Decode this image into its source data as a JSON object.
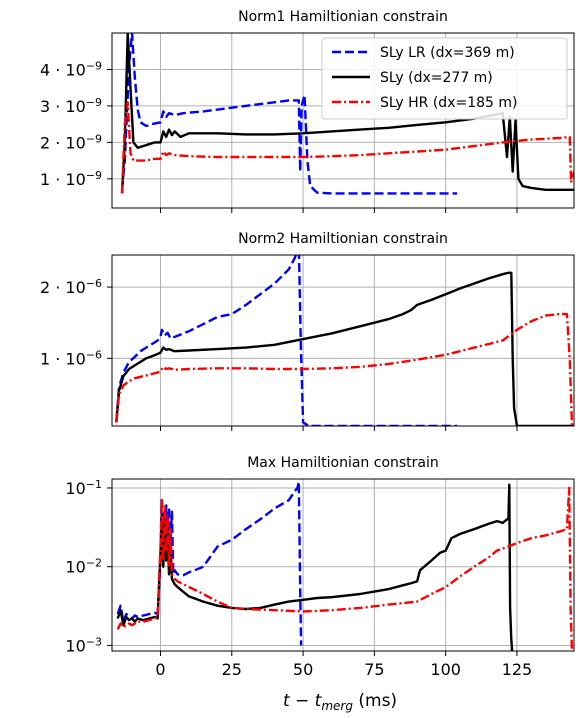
{
  "figure": {
    "xlabel": "t − t_merg (ms)"
  },
  "chart_data": [
    {
      "type": "line",
      "title": "Norm1 Hamiltionian constrain",
      "xlim": [
        -17,
        145
      ],
      "ylim": [
        2e-10,
        5e-09
      ],
      "yscale": "linear",
      "grid": true,
      "legend_position": "top-right",
      "y_ticks": [
        {
          "value": 1e-09,
          "label": "1 · 10",
          "exp": "−9"
        },
        {
          "value": 2e-09,
          "label": "2 · 10",
          "exp": "−9"
        },
        {
          "value": 3e-09,
          "label": "3 · 10",
          "exp": "−9"
        },
        {
          "value": 4e-09,
          "label": "4 · 10",
          "exp": "−9"
        }
      ],
      "series": [
        {
          "name": "SLy LR (dx=369 m)",
          "color": "#0000ff",
          "style": "dashed",
          "x": [
            -13.5,
            -12.5,
            -11,
            -10,
            -9,
            -8,
            -7,
            -5,
            -3,
            0,
            1,
            2,
            3,
            5,
            8,
            15,
            25,
            35,
            45,
            48.5,
            49,
            49.5,
            50.5,
            51.5,
            52.5,
            55,
            60,
            70,
            80,
            90,
            100,
            104
          ],
          "y": [
            7e-10,
            1.5e-09,
            4.1e-09,
            5e-09,
            3.8e-09,
            2.9e-09,
            2.55e-09,
            2.45e-09,
            2.5e-09,
            2.55e-09,
            2.85e-09,
            2.7e-09,
            2.8e-09,
            2.75e-09,
            2.8e-09,
            2.85e-09,
            2.95e-09,
            3.05e-09,
            3.15e-09,
            3.15e-09,
            1.2e-09,
            3e-09,
            3.3e-09,
            1.5e-09,
            8e-10,
            6.2e-10,
            6e-10,
            6e-10,
            6e-10,
            6e-10,
            6e-10,
            6e-10
          ]
        },
        {
          "name": "SLy (dx=277 m)",
          "color": "#000000",
          "style": "solid",
          "x": [
            -13.5,
            -12.5,
            -11.5,
            -10.5,
            -9.5,
            -8,
            -6,
            -4,
            -2,
            0,
            1,
            2,
            3,
            4,
            5,
            7,
            10,
            20,
            30,
            40,
            50,
            60,
            70,
            80,
            90,
            100,
            110,
            120,
            121.5,
            122.5,
            123.5,
            124.5,
            125.5,
            127,
            130,
            135,
            140,
            145
          ],
          "y": [
            6e-10,
            2e-09,
            5e-09,
            3.5e-09,
            2e-09,
            1.85e-09,
            1.9e-09,
            1.95e-09,
            2e-09,
            2e-09,
            2.3e-09,
            2.15e-09,
            2.35e-09,
            2.2e-09,
            2.3e-09,
            2.15e-09,
            2.25e-09,
            2.25e-09,
            2.22e-09,
            2.22e-09,
            2.25e-09,
            2.3e-09,
            2.35e-09,
            2.4e-09,
            2.48e-09,
            2.55e-09,
            2.65e-09,
            2.8e-09,
            1.6e-09,
            2.7e-09,
            1.2e-09,
            2.6e-09,
            1e-09,
            8e-10,
            7.5e-10,
            7e-10,
            7e-10,
            7e-10
          ]
        },
        {
          "name": "SLy HR (dx=185 m)",
          "color": "#ff0000",
          "style": "dashdot",
          "x": [
            -13.5,
            -12.5,
            -11.5,
            -10.5,
            -9.5,
            -8,
            -5,
            -2,
            0,
            1,
            2,
            3,
            5,
            10,
            20,
            30,
            40,
            50,
            60,
            70,
            80,
            90,
            100,
            110,
            120,
            130,
            140,
            143.5,
            144,
            145
          ],
          "y": [
            6e-10,
            2.5e-09,
            3.1e-09,
            1.7e-09,
            1.5e-09,
            1.5e-09,
            1.5e-09,
            1.55e-09,
            1.55e-09,
            1.75e-09,
            1.65e-09,
            1.7e-09,
            1.65e-09,
            1.62e-09,
            1.6e-09,
            1.6e-09,
            1.6e-09,
            1.6e-09,
            1.62e-09,
            1.65e-09,
            1.7e-09,
            1.75e-09,
            1.8e-09,
            1.9e-09,
            2e-09,
            2.08e-09,
            2.12e-09,
            2.15e-09,
            9e-10,
            1.2e-09
          ]
        }
      ]
    },
    {
      "type": "line",
      "title": "Norm2 Hamiltionian constrain",
      "xlim": [
        -17,
        145
      ],
      "ylim": [
        5e-08,
        2.45e-06
      ],
      "yscale": "linear",
      "grid": true,
      "y_ticks": [
        {
          "value": 1e-06,
          "label": "1 · 10",
          "exp": "−6"
        },
        {
          "value": 2e-06,
          "label": "2 · 10",
          "exp": "−6"
        }
      ],
      "series": [
        {
          "name": "SLy LR (dx=369 m)",
          "color": "#0000ff",
          "style": "dashed",
          "x": [
            -15.5,
            -14.5,
            -13,
            -11,
            -9,
            -7,
            -5,
            -3,
            -1,
            0,
            0.5,
            1.5,
            2.5,
            3.5,
            5,
            10,
            15,
            20,
            25,
            30,
            35,
            40,
            45,
            47,
            48,
            48.5,
            49.2,
            50,
            52,
            60,
            70,
            80,
            90,
            100,
            104
          ],
          "y": [
            1e-07,
            6e-07,
            8e-07,
            9.5e-07,
            1.02e-06,
            1.1e-06,
            1.15e-06,
            1.2e-06,
            1.25e-06,
            1.3e-06,
            1.4e-06,
            1.32e-06,
            1.36e-06,
            1.28e-06,
            1.3e-06,
            1.38e-06,
            1.48e-06,
            1.58e-06,
            1.62e-06,
            1.75e-06,
            1.9e-06,
            2.05e-06,
            2.25e-06,
            2.4e-06,
            2.5e-06,
            2.6e-06,
            1.2e-06,
            1e-07,
            5e-08,
            5e-08,
            5e-08,
            5e-08,
            5e-08,
            5e-08,
            5e-08
          ]
        },
        {
          "name": "SLy (dx=277 m)",
          "color": "#000000",
          "style": "solid",
          "x": [
            -15.5,
            -14.5,
            -13,
            -11,
            -9,
            -7,
            -5,
            -3,
            -1,
            0,
            1,
            2,
            3,
            5,
            10,
            20,
            30,
            40,
            50,
            60,
            70,
            80,
            85,
            88,
            90,
            95,
            100,
            105,
            110,
            115,
            120,
            122,
            123,
            123.5,
            124,
            125,
            130,
            140,
            145
          ],
          "y": [
            1e-07,
            5.5e-07,
            7.5e-07,
            8.5e-07,
            9e-07,
            9.5e-07,
            1e-06,
            1.03e-06,
            1.06e-06,
            1.08e-06,
            1.15e-06,
            1.12e-06,
            1.13e-06,
            1.1e-06,
            1.11e-06,
            1.13e-06,
            1.15e-06,
            1.19e-06,
            1.27e-06,
            1.35e-06,
            1.45e-06,
            1.55e-06,
            1.62e-06,
            1.68e-06,
            1.75e-06,
            1.82e-06,
            1.9e-06,
            1.98e-06,
            2.05e-06,
            2.12e-06,
            2.18e-06,
            2.2e-06,
            2.2e-06,
            1e-06,
            3e-07,
            5e-08,
            5e-08,
            5e-08,
            5e-08
          ]
        },
        {
          "name": "SLy HR (dx=185 m)",
          "color": "#ff0000",
          "style": "dashdot",
          "x": [
            -15.5,
            -14.5,
            -13,
            -11,
            -9,
            -7,
            -5,
            -3,
            -1,
            0,
            1,
            2,
            3,
            5,
            10,
            20,
            30,
            40,
            50,
            60,
            70,
            80,
            90,
            100,
            110,
            120,
            125,
            130,
            135,
            140,
            142.5,
            143.5,
            144.3
          ],
          "y": [
            1e-07,
            5e-07,
            6.2e-07,
            6.8e-07,
            7.2e-07,
            7.4e-07,
            7.6e-07,
            7.8e-07,
            8e-07,
            8.2e-07,
            8.8e-07,
            8.5e-07,
            8.6e-07,
            8.4e-07,
            8.5e-07,
            8.6e-07,
            8.6e-07,
            8.5e-07,
            8.5e-07,
            8.6e-07,
            8.8e-07,
            9.2e-07,
            9.8e-07,
            1.05e-06,
            1.15e-06,
            1.25e-06,
            1.4e-06,
            1.52e-06,
            1.6e-06,
            1.62e-06,
            1.62e-06,
            1e-06,
            5e-08
          ]
        }
      ]
    },
    {
      "type": "line",
      "title": "Max  Hamiltionian constrain",
      "xlim": [
        -17,
        145
      ],
      "ylim": [
        0.00085,
        0.13
      ],
      "yscale": "log",
      "grid": true,
      "y_ticks": [
        {
          "value": 0.001,
          "label": "10",
          "exp": "−3"
        },
        {
          "value": 0.01,
          "label": "10",
          "exp": "−2"
        },
        {
          "value": 0.1,
          "label": "10",
          "exp": "−1"
        }
      ],
      "x_ticks": [
        0,
        25,
        50,
        75,
        100,
        125
      ],
      "series": [
        {
          "name": "SLy LR (dx=369 m)",
          "color": "#0000ff",
          "style": "dashed",
          "x": [
            -15,
            -14,
            -13,
            -12,
            -11,
            -10,
            -9,
            -8,
            -6,
            -4,
            -2,
            -1,
            0,
            0.4,
            0.8,
            1.2,
            1.6,
            2,
            2.5,
            3,
            3.5,
            4,
            4.5,
            5,
            6,
            8,
            10,
            12,
            15,
            20,
            25,
            30,
            35,
            40,
            45,
            47,
            48,
            48.5,
            49,
            49.3
          ],
          "y": [
            0.0025,
            0.0032,
            0.002,
            0.0025,
            0.0023,
            0.0022,
            0.0024,
            0.0023,
            0.0024,
            0.0025,
            0.0026,
            0.0025,
            0.012,
            0.07,
            0.02,
            0.05,
            0.015,
            0.06,
            0.03,
            0.055,
            0.02,
            0.05,
            0.008,
            0.009,
            0.008,
            0.0078,
            0.0085,
            0.009,
            0.01,
            0.018,
            0.022,
            0.03,
            0.04,
            0.055,
            0.07,
            0.09,
            0.1,
            0.12,
            0.005,
            0.001
          ]
        },
        {
          "name": "SLy (dx=277 m)",
          "color": "#000000",
          "style": "solid",
          "x": [
            -15,
            -14,
            -13,
            -12,
            -11,
            -10,
            -9,
            -8,
            -6,
            -4,
            -2,
            -1,
            0,
            0.5,
            1,
            1.5,
            2,
            2.5,
            3,
            3.5,
            4,
            5,
            6,
            8,
            10,
            15,
            20,
            25,
            30,
            35,
            40,
            45,
            50,
            55,
            60,
            70,
            80,
            85,
            88,
            90,
            91,
            95,
            98,
            100,
            102,
            105,
            110,
            115,
            118,
            120,
            121.5,
            122,
            122.3,
            122.6,
            123,
            123.3
          ],
          "y": [
            0.0022,
            0.0028,
            0.0018,
            0.0023,
            0.0021,
            0.0022,
            0.002,
            0.0022,
            0.0021,
            0.0022,
            0.0023,
            0.0022,
            0.015,
            0.045,
            0.01,
            0.04,
            0.012,
            0.03,
            0.008,
            0.02,
            0.007,
            0.006,
            0.0055,
            0.0048,
            0.0042,
            0.0036,
            0.0032,
            0.003,
            0.0029,
            0.003,
            0.0033,
            0.0036,
            0.0038,
            0.004,
            0.0041,
            0.0045,
            0.0052,
            0.0058,
            0.0062,
            0.0065,
            0.009,
            0.012,
            0.015,
            0.016,
            0.023,
            0.026,
            0.03,
            0.035,
            0.038,
            0.036,
            0.04,
            0.04,
            0.11,
            0.003,
            0.0012,
            0.00085
          ]
        },
        {
          "name": "SLy HR (dx=185 m)",
          "color": "#ff0000",
          "style": "dashdot",
          "x": [
            -15,
            -14,
            -13,
            -12,
            -11,
            -10,
            -9,
            -8,
            -6,
            -4,
            -2,
            -1,
            0,
            0.5,
            1,
            1.5,
            2,
            2.5,
            3,
            3.5,
            4,
            5,
            6,
            8,
            10,
            15,
            20,
            25,
            30,
            40,
            50,
            60,
            70,
            80,
            90,
            95,
            100,
            105,
            110,
            115,
            118,
            120,
            125,
            130,
            135,
            140,
            142.5,
            143.3,
            143.8,
            144.3
          ],
          "y": [
            0.0016,
            0.0019,
            0.0017,
            0.0018,
            0.0019,
            0.0018,
            0.0019,
            0.002,
            0.002,
            0.0021,
            0.0022,
            0.0023,
            0.018,
            0.075,
            0.012,
            0.06,
            0.015,
            0.045,
            0.01,
            0.03,
            0.008,
            0.007,
            0.0065,
            0.006,
            0.0055,
            0.0045,
            0.0036,
            0.003,
            0.0029,
            0.0028,
            0.0027,
            0.0028,
            0.003,
            0.0033,
            0.0036,
            0.0045,
            0.0055,
            0.0075,
            0.01,
            0.013,
            0.016,
            0.017,
            0.02,
            0.023,
            0.025,
            0.028,
            0.03,
            0.1,
            0.003,
            0.00085
          ]
        }
      ]
    }
  ]
}
